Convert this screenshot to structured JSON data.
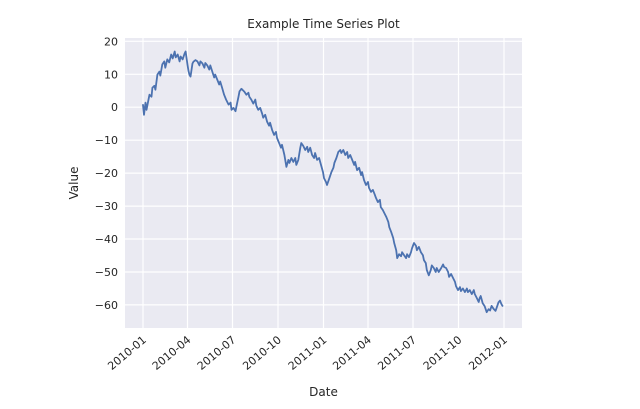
{
  "figure": {
    "title": "Example Time Series Plot",
    "xlabel": "Date",
    "ylabel": "Value"
  },
  "chart_data": {
    "type": "line",
    "title": "Example Time Series Plot",
    "xlabel": "Date",
    "ylabel": "Value",
    "legend": "none",
    "grid": "on",
    "style": "seaborn-darkgrid",
    "colors": {
      "line": "#4c72b0",
      "plot_bg": "#eaeaf2",
      "grid": "#ffffff",
      "text": "#262626",
      "figure_bg": "#ffffff"
    },
    "x_start_date": "2010-01-01",
    "x_unit": "days since 2010-01-01",
    "xlim_days": [
      -36.5,
      766.5
    ],
    "ylim": [
      -67,
      21
    ],
    "x_ticks": [
      {
        "day": 0,
        "label": "2010-01"
      },
      {
        "day": 90,
        "label": "2010-04"
      },
      {
        "day": 181,
        "label": "2010-07"
      },
      {
        "day": 273,
        "label": "2010-10"
      },
      {
        "day": 365,
        "label": "2011-01"
      },
      {
        "day": 455,
        "label": "2011-04"
      },
      {
        "day": 546,
        "label": "2011-07"
      },
      {
        "day": 638,
        "label": "2011-10"
      },
      {
        "day": 730,
        "label": "2012-01"
      }
    ],
    "y_ticks": [
      {
        "v": 20,
        "label": "20"
      },
      {
        "v": 10,
        "label": "10"
      },
      {
        "v": 0,
        "label": "0"
      },
      {
        "v": -10,
        "label": "−10"
      },
      {
        "v": -20,
        "label": "−20"
      },
      {
        "v": -30,
        "label": "−30"
      },
      {
        "v": -40,
        "label": "−40"
      },
      {
        "v": -50,
        "label": "−50"
      },
      {
        "v": -60,
        "label": "−60"
      }
    ],
    "points": [
      [
        0,
        0.7
      ],
      [
        2,
        -2.3
      ],
      [
        5,
        1.4
      ],
      [
        7,
        -0.8
      ],
      [
        11,
        2.3
      ],
      [
        13,
        3.8
      ],
      [
        17,
        3.2
      ],
      [
        19,
        5.9
      ],
      [
        23,
        6.5
      ],
      [
        25,
        5.3
      ],
      [
        29,
        9.9
      ],
      [
        33,
        10.8
      ],
      [
        35,
        9.6
      ],
      [
        39,
        13.0
      ],
      [
        43,
        13.9
      ],
      [
        45,
        12.0
      ],
      [
        49,
        14.5
      ],
      [
        53,
        13.6
      ],
      [
        57,
        16.0
      ],
      [
        60,
        14.8
      ],
      [
        64,
        16.9
      ],
      [
        66,
        15.1
      ],
      [
        70,
        16.0
      ],
      [
        74,
        13.9
      ],
      [
        76,
        15.4
      ],
      [
        80,
        14.5
      ],
      [
        84,
        16.3
      ],
      [
        86,
        16.9
      ],
      [
        90,
        12.9
      ],
      [
        92,
        11.0
      ],
      [
        94,
        9.8
      ],
      [
        96,
        9.3
      ],
      [
        100,
        13.3
      ],
      [
        102,
        13.8
      ],
      [
        106,
        14.3
      ],
      [
        110,
        13.9
      ],
      [
        114,
        12.7
      ],
      [
        116,
        13.9
      ],
      [
        120,
        13.3
      ],
      [
        124,
        12.0
      ],
      [
        126,
        13.4
      ],
      [
        130,
        12.7
      ],
      [
        134,
        11.4
      ],
      [
        136,
        12.7
      ],
      [
        140,
        10.8
      ],
      [
        144,
        9.0
      ],
      [
        146,
        9.9
      ],
      [
        150,
        8.4
      ],
      [
        154,
        6.9
      ],
      [
        156,
        7.8
      ],
      [
        160,
        5.9
      ],
      [
        164,
        3.8
      ],
      [
        168,
        2.3
      ],
      [
        173,
        0.8
      ],
      [
        177,
        1.4
      ],
      [
        179,
        -0.8
      ],
      [
        183,
        -0.2
      ],
      [
        187,
        -1.2
      ],
      [
        189,
        0.3
      ],
      [
        193,
        3.2
      ],
      [
        195,
        4.8
      ],
      [
        199,
        5.6
      ],
      [
        201,
        5.3
      ],
      [
        205,
        4.7
      ],
      [
        209,
        3.8
      ],
      [
        213,
        4.4
      ],
      [
        215,
        3.2
      ],
      [
        219,
        2.3
      ],
      [
        223,
        1.1
      ],
      [
        227,
        2.3
      ],
      [
        229,
        0.5
      ],
      [
        233,
        -0.8
      ],
      [
        237,
        -0.2
      ],
      [
        241,
        -2.0
      ],
      [
        243,
        -3.2
      ],
      [
        247,
        -2.3
      ],
      [
        251,
        -4.4
      ],
      [
        255,
        -5.6
      ],
      [
        257,
        -4.7
      ],
      [
        261,
        -6.9
      ],
      [
        265,
        -8.4
      ],
      [
        269,
        -7.5
      ],
      [
        271,
        -9.3
      ],
      [
        275,
        -10.8
      ],
      [
        279,
        -12.3
      ],
      [
        281,
        -11.4
      ],
      [
        286,
        -14.5
      ],
      [
        290,
        -18.1
      ],
      [
        294,
        -16.0
      ],
      [
        296,
        -16.9
      ],
      [
        300,
        -15.4
      ],
      [
        304,
        -16.6
      ],
      [
        308,
        -15.4
      ],
      [
        310,
        -17.5
      ],
      [
        314,
        -16.0
      ],
      [
        318,
        -12.3
      ],
      [
        320,
        -10.9
      ],
      [
        324,
        -11.7
      ],
      [
        328,
        -13.0
      ],
      [
        332,
        -12.0
      ],
      [
        334,
        -13.6
      ],
      [
        338,
        -12.3
      ],
      [
        342,
        -14.5
      ],
      [
        346,
        -15.4
      ],
      [
        348,
        -13.9
      ],
      [
        352,
        -16.0
      ],
      [
        356,
        -15.4
      ],
      [
        360,
        -17.5
      ],
      [
        364,
        -19.7
      ],
      [
        366,
        -21.5
      ],
      [
        370,
        -22.7
      ],
      [
        372,
        -23.6
      ],
      [
        377,
        -21.5
      ],
      [
        381,
        -19.7
      ],
      [
        385,
        -18.4
      ],
      [
        387,
        -16.9
      ],
      [
        391,
        -15.4
      ],
      [
        395,
        -13.6
      ],
      [
        399,
        -13.0
      ],
      [
        401,
        -13.9
      ],
      [
        405,
        -13.0
      ],
      [
        409,
        -14.5
      ],
      [
        413,
        -13.6
      ],
      [
        415,
        -15.4
      ],
      [
        419,
        -14.5
      ],
      [
        423,
        -16.0
      ],
      [
        427,
        -17.5
      ],
      [
        429,
        -16.6
      ],
      [
        433,
        -19.1
      ],
      [
        437,
        -18.4
      ],
      [
        441,
        -20.6
      ],
      [
        443,
        -19.7
      ],
      [
        447,
        -22.1
      ],
      [
        451,
        -23.6
      ],
      [
        455,
        -22.7
      ],
      [
        457,
        -24.5
      ],
      [
        461,
        -25.7
      ],
      [
        465,
        -25.1
      ],
      [
        469,
        -26.6
      ],
      [
        471,
        -27.5
      ],
      [
        475,
        -28.8
      ],
      [
        479,
        -28.1
      ],
      [
        481,
        -30.3
      ],
      [
        485,
        -31.2
      ],
      [
        490,
        -32.7
      ],
      [
        492,
        -33.3
      ],
      [
        496,
        -34.8
      ],
      [
        498,
        -36.4
      ],
      [
        502,
        -37.9
      ],
      [
        506,
        -39.7
      ],
      [
        508,
        -41.2
      ],
      [
        512,
        -43.4
      ],
      [
        514,
        -45.8
      ],
      [
        518,
        -44.6
      ],
      [
        522,
        -45.2
      ],
      [
        524,
        -44.0
      ],
      [
        528,
        -44.9
      ],
      [
        532,
        -45.8
      ],
      [
        534,
        -44.6
      ],
      [
        538,
        -45.5
      ],
      [
        542,
        -44.0
      ],
      [
        544,
        -42.8
      ],
      [
        548,
        -41.2
      ],
      [
        552,
        -42.1
      ],
      [
        554,
        -43.4
      ],
      [
        558,
        -42.4
      ],
      [
        562,
        -44.0
      ],
      [
        566,
        -44.9
      ],
      [
        568,
        -46.4
      ],
      [
        572,
        -47.3
      ],
      [
        574,
        -49.4
      ],
      [
        578,
        -51.0
      ],
      [
        582,
        -49.4
      ],
      [
        584,
        -48.0
      ],
      [
        588,
        -48.8
      ],
      [
        592,
        -50.0
      ],
      [
        594,
        -48.8
      ],
      [
        598,
        -50.0
      ],
      [
        603,
        -48.8
      ],
      [
        607,
        -47.7
      ],
      [
        609,
        -48.5
      ],
      [
        613,
        -48.8
      ],
      [
        617,
        -50.0
      ],
      [
        619,
        -51.5
      ],
      [
        623,
        -50.6
      ],
      [
        627,
        -51.8
      ],
      [
        631,
        -53.0
      ],
      [
        633,
        -54.3
      ],
      [
        637,
        -55.5
      ],
      [
        641,
        -54.6
      ],
      [
        643,
        -55.8
      ],
      [
        647,
        -55.0
      ],
      [
        651,
        -56.1
      ],
      [
        655,
        -55.0
      ],
      [
        657,
        -56.1
      ],
      [
        661,
        -55.5
      ],
      [
        665,
        -56.7
      ],
      [
        669,
        -55.5
      ],
      [
        671,
        -56.7
      ],
      [
        675,
        -57.9
      ],
      [
        679,
        -59.1
      ],
      [
        681,
        -57.9
      ],
      [
        683,
        -57.3
      ],
      [
        687,
        -59.5
      ],
      [
        691,
        -60.4
      ],
      [
        695,
        -62.2
      ],
      [
        699,
        -61.3
      ],
      [
        702,
        -61.7
      ],
      [
        705,
        -60.3
      ],
      [
        709,
        -61.2
      ],
      [
        713,
        -61.8
      ],
      [
        715,
        -61.0
      ],
      [
        719,
        -59.2
      ],
      [
        722,
        -58.7
      ],
      [
        725,
        -59.8
      ],
      [
        727,
        -60.3
      ]
    ]
  }
}
